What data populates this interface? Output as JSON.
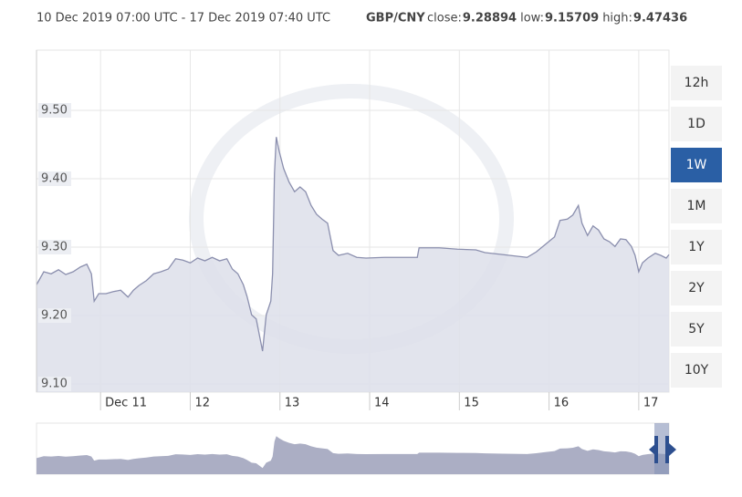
{
  "header": {
    "range": "10 Dec 2019 07:00 UTC - 17 Dec 2019 07:40 UTC",
    "pair": "GBP/CNY",
    "stats": [
      {
        "label": "close:",
        "value": 9.28894
      },
      {
        "label": "low:",
        "value": 9.15709
      },
      {
        "label": "high:",
        "value": 9.47436
      }
    ]
  },
  "range_buttons": {
    "labels": [
      "12h",
      "1D",
      "1W",
      "1M",
      "1Y",
      "2Y",
      "5Y",
      "10Y"
    ],
    "active": 2
  },
  "chart_data": {
    "type": "area",
    "color": "#8b8fae",
    "fill": "#dddfea",
    "grid": true,
    "x": [
      10.286,
      10.367,
      10.449,
      10.531,
      10.612,
      10.694,
      10.776,
      10.847,
      10.898,
      10.929,
      10.98,
      11.061,
      11.143,
      11.224,
      11.306,
      11.367,
      11.429,
      11.51,
      11.592,
      11.673,
      11.755,
      11.837,
      11.918,
      12.0,
      12.082,
      12.163,
      12.245,
      12.327,
      12.408,
      12.469,
      12.531,
      12.592,
      12.633,
      12.684,
      12.735,
      12.776,
      12.806,
      12.847,
      12.898,
      12.918,
      12.939,
      12.959,
      12.99,
      13.041,
      13.102,
      13.163,
      13.224,
      13.286,
      13.347,
      13.408,
      13.469,
      13.531,
      13.592,
      13.653,
      13.755,
      13.857,
      13.959,
      14.163,
      14.367,
      14.531,
      14.551,
      14.776,
      14.98,
      15.184,
      15.286,
      15.49,
      15.755,
      15.857,
      15.959,
      16.061,
      16.122,
      16.204,
      16.265,
      16.327,
      16.367,
      16.429,
      16.49,
      16.551,
      16.612,
      16.673,
      16.735,
      16.796,
      16.857,
      16.918,
      16.959,
      17.0,
      17.041,
      17.102,
      17.184,
      17.245,
      17.306,
      17.337
    ],
    "values": [
      9.245,
      9.264,
      9.261,
      9.267,
      9.26,
      9.264,
      9.271,
      9.275,
      9.261,
      9.221,
      9.232,
      9.232,
      9.235,
      9.237,
      9.227,
      9.237,
      9.244,
      9.251,
      9.261,
      9.264,
      9.268,
      9.283,
      9.281,
      9.277,
      9.284,
      9.28,
      9.285,
      9.28,
      9.283,
      9.268,
      9.261,
      9.245,
      9.228,
      9.201,
      9.195,
      9.168,
      9.148,
      9.201,
      9.221,
      9.261,
      9.408,
      9.461,
      9.441,
      9.415,
      9.395,
      9.381,
      9.388,
      9.381,
      9.361,
      9.348,
      9.341,
      9.335,
      9.295,
      9.288,
      9.291,
      9.285,
      9.284,
      9.285,
      9.285,
      9.285,
      9.299,
      9.299,
      9.297,
      9.296,
      9.292,
      9.289,
      9.285,
      9.293,
      9.304,
      9.315,
      9.339,
      9.341,
      9.347,
      9.361,
      9.335,
      9.317,
      9.331,
      9.325,
      9.312,
      9.308,
      9.301,
      9.312,
      9.311,
      9.301,
      9.288,
      9.264,
      9.277,
      9.284,
      9.291,
      9.288,
      9.284,
      9.289
    ],
    "xlim": [
      10.286,
      17.337
    ],
    "ylim": [
      9.088,
      9.588
    ],
    "xticks": [
      {
        "value": 11,
        "label": "Dec 11"
      },
      12,
      13,
      14,
      15,
      16,
      17
    ],
    "yticks": [
      {
        "value": 9.5,
        "label": "9.50"
      },
      {
        "value": 9.4,
        "label": "9.40"
      },
      {
        "value": 9.3,
        "label": "9.30"
      },
      {
        "value": 9.2,
        "label": "9.20"
      },
      {
        "value": 9.1,
        "label": "9.10"
      }
    ]
  }
}
